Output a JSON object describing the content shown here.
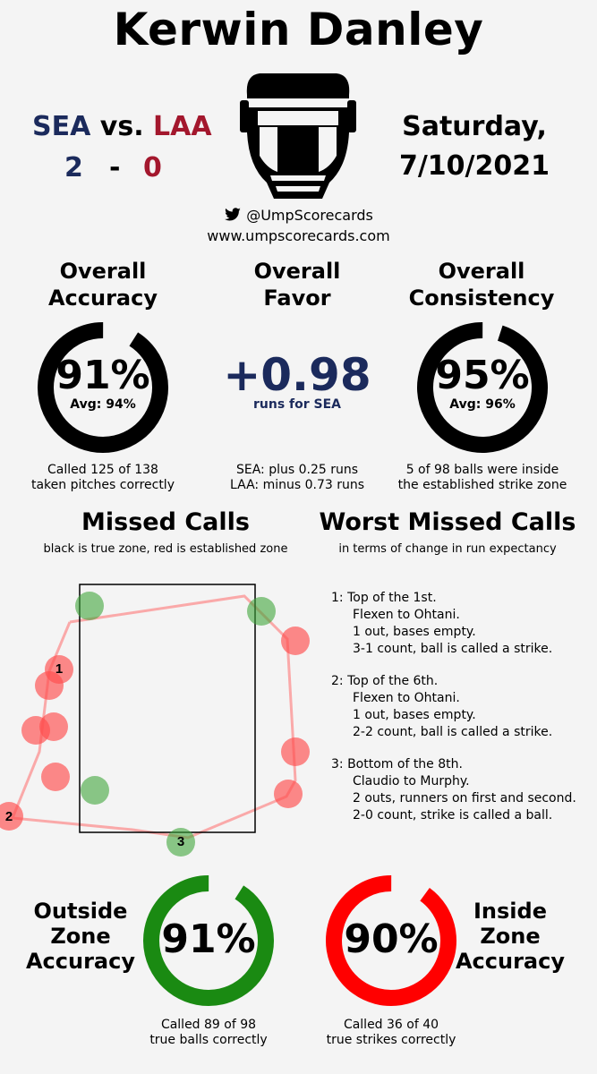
{
  "title": "Kerwin Danley",
  "game": {
    "away_team": "SEA",
    "vs": "vs.",
    "home_team": "LAA",
    "away_score": "2",
    "dash": "-",
    "home_score": "0",
    "day": "Saturday,",
    "date": "7/10/2021"
  },
  "social": {
    "twitter_handle": "@UmpScorecards",
    "website": "www.umpscorecards.com"
  },
  "overall_accuracy": {
    "heading_line1": "Overall",
    "heading_line2": "Accuracy",
    "value": "91%",
    "fraction": 0.91,
    "avg": "Avg: 94%",
    "note_line1": "Called 125 of 138",
    "note_line2": "taken pitches correctly"
  },
  "overall_favor": {
    "heading_line1": "Overall",
    "heading_line2": "Favor",
    "value": "+0.98",
    "unit": "runs for SEA",
    "note_line1": "SEA: plus 0.25 runs",
    "note_line2": "LAA: minus 0.73 runs"
  },
  "overall_consistency": {
    "heading_line1": "Overall",
    "heading_line2": "Consistency",
    "value": "95%",
    "fraction": 0.95,
    "avg": "Avg: 96%",
    "note_line1": "5 of 98 balls were inside",
    "note_line2": "the established strike zone"
  },
  "missed_calls": {
    "heading": "Missed Calls",
    "subheading": "black is true zone, red is established zone",
    "labels": [
      "1",
      "2",
      "3"
    ]
  },
  "worst_missed_calls": {
    "heading": "Worst Missed Calls",
    "subheading": "in terms of change in run expectancy",
    "items": [
      {
        "line1": "1: Top of the 1st.",
        "line2": "Flexen to Ohtani.",
        "line3": "1 out, bases empty.",
        "line4": "3-1 count, ball is called a strike."
      },
      {
        "line1": "2: Top of the 6th.",
        "line2": "Flexen to Ohtani.",
        "line3": "1 out, bases empty.",
        "line4": "2-2 count, ball is called a strike."
      },
      {
        "line1": "3: Bottom of the 8th.",
        "line2": "Claudio to Murphy.",
        "line3": "2 outs, runners on first and second.",
        "line4": "2-0 count, strike is called a ball."
      }
    ]
  },
  "outside_zone": {
    "heading_line1": "Outside",
    "heading_line2": "Zone",
    "heading_line3": "Accuracy",
    "value": "91%",
    "fraction": 0.91,
    "note_line1": "Called 89 of 98",
    "note_line2": "true balls correctly"
  },
  "inside_zone": {
    "heading_line1": "Inside",
    "heading_line2": "Zone",
    "heading_line3": "Accuracy",
    "value": "90%",
    "fraction": 0.9,
    "note_line1": "Called 36 of 40",
    "note_line2": "true strikes correctly"
  },
  "colors": {
    "sea": "#1b2a5c",
    "laa": "#a3172d",
    "ring_dark": "#000000",
    "ring_green": "#1a8a12",
    "ring_red": "#ff0000",
    "missed_red": "#ff4d4d",
    "missed_green": "#3fa53a"
  }
}
